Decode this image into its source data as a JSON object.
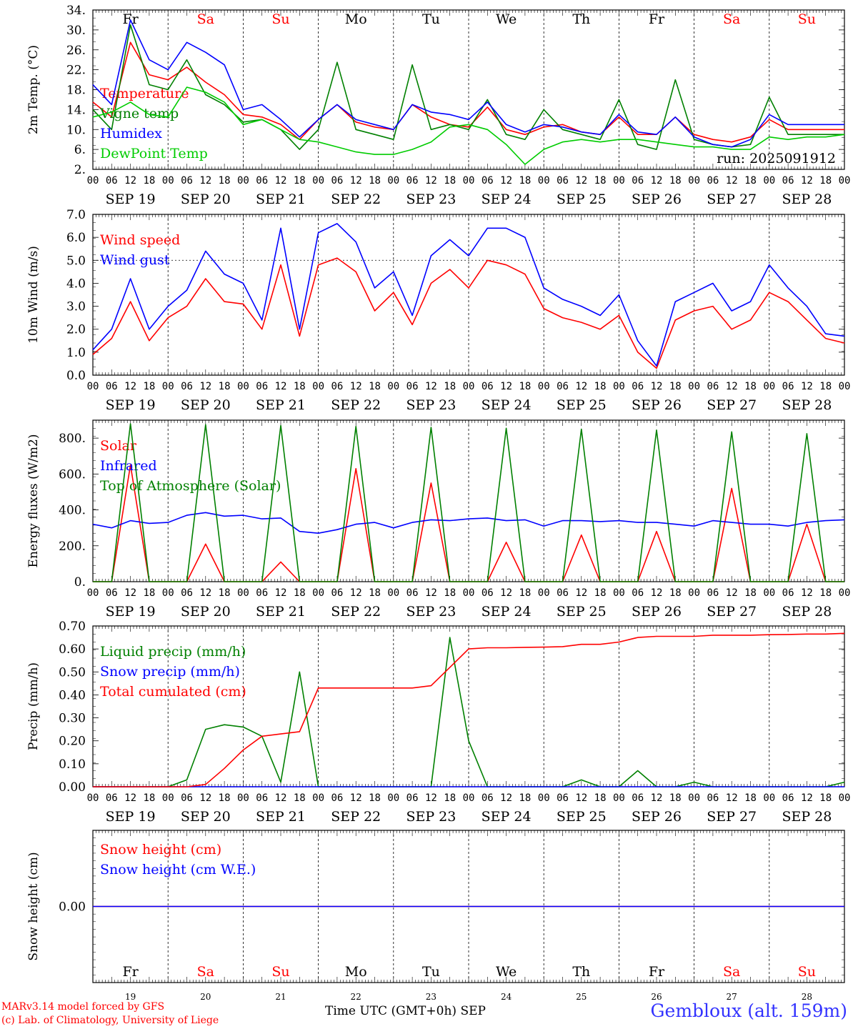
{
  "meta": {
    "station": "Gembloux (alt. 159m)",
    "model_line": "MARv3.14 model forced by GFS",
    "credit_line": "(c) Lab. of Climatology, University of Liege",
    "time_axis_label": "Time UTC (GMT+0h)",
    "month": "SEP",
    "run_label": "run: 2025091912"
  },
  "days": [
    "19",
    "20",
    "21",
    "22",
    "23",
    "24",
    "25",
    "26",
    "27",
    "28"
  ],
  "day_labels": [
    "SEP 19",
    "SEP 20",
    "SEP 21",
    "SEP 22",
    "SEP 23",
    "SEP 24",
    "SEP 25",
    "SEP 26",
    "SEP 27",
    "SEP 28"
  ],
  "weekdays": [
    "Fr",
    "Sa",
    "Su",
    "Mo",
    "Tu",
    "We",
    "Th",
    "Fr",
    "Sa",
    "Su"
  ],
  "weekday_colors": [
    "#000000",
    "#ff0000",
    "#ff0000",
    "#000000",
    "#000000",
    "#000000",
    "#000000",
    "#000000",
    "#ff0000",
    "#ff0000"
  ],
  "hour_ticks": [
    "00",
    "06",
    "12",
    "18"
  ],
  "colors": {
    "red": "#ff0000",
    "darkgreen": "#008000",
    "blue": "#0000ff",
    "lime": "#00cc00"
  },
  "chart_data": [
    {
      "id": "temperature",
      "type": "line",
      "ylabel": "2m Temp. (°C)",
      "ylim": [
        2,
        34
      ],
      "yticks": [
        "34.",
        "30.",
        "26.",
        "22.",
        "18.",
        "14.",
        "10.",
        "6.",
        "2."
      ],
      "ytick_values": [
        34,
        30,
        26,
        22,
        18,
        14,
        10,
        6,
        2
      ],
      "x_hours": [
        0,
        6,
        12,
        18,
        24,
        30,
        36,
        42,
        48,
        54,
        60,
        66,
        72,
        78,
        84,
        90,
        96,
        102,
        108,
        114,
        120,
        126,
        132,
        138,
        144,
        150,
        156,
        162,
        168,
        174,
        180,
        186,
        192,
        198,
        204,
        210,
        216,
        222,
        228,
        234,
        240
      ],
      "series": [
        {
          "name": "Temperature",
          "color": "#ff0000",
          "values": [
            15.5,
            12.5,
            27.5,
            21,
            20,
            22.5,
            19.5,
            17,
            13,
            12.5,
            11,
            8,
            12,
            15,
            11.5,
            10.5,
            10,
            15,
            12.5,
            11,
            10.5,
            14.5,
            10,
            9,
            10.5,
            11,
            9.5,
            9,
            12.5,
            9,
            9,
            12.5,
            9,
            8,
            7.5,
            8.5,
            12,
            10,
            10,
            10,
            10
          ]
        },
        {
          "name": "Vigne temp",
          "color": "#008000",
          "values": [
            14,
            10,
            31,
            19,
            18,
            24,
            17,
            15,
            11.5,
            12,
            10,
            6,
            10,
            23.5,
            10,
            9,
            8,
            23,
            10,
            11,
            10,
            16,
            9,
            8,
            14,
            10,
            9,
            8,
            16,
            7,
            6,
            20,
            8,
            7,
            6.5,
            7,
            16.5,
            9,
            9,
            9,
            9
          ]
        },
        {
          "name": "Humidex",
          "color": "#0000ff",
          "values": [
            19,
            15,
            32,
            24,
            22,
            27.5,
            25.5,
            23,
            14,
            15,
            12,
            8.5,
            12,
            15,
            12,
            11,
            10,
            15,
            13.5,
            13,
            12,
            15.5,
            11,
            9.5,
            11,
            10.5,
            9.5,
            9,
            13,
            9.5,
            9,
            12.5,
            8.5,
            7,
            6.5,
            8,
            13,
            11,
            11,
            11,
            11
          ]
        },
        {
          "name": "DewPoint Temp",
          "color": "#00cc00",
          "values": [
            12.5,
            13.5,
            15.5,
            13,
            12.5,
            18.5,
            17.5,
            15.5,
            11,
            12,
            10,
            8,
            7.5,
            6.5,
            5.5,
            5,
            5,
            6,
            7.5,
            10.5,
            11,
            10,
            7,
            3,
            6,
            7.5,
            8,
            7.5,
            8,
            8,
            7.5,
            7,
            6.5,
            6.5,
            6,
            6,
            8.5,
            8,
            8.5,
            8.5,
            9
          ]
        }
      ]
    },
    {
      "id": "wind",
      "type": "line",
      "ylabel": "10m Wind (m/s)",
      "ylim": [
        0,
        7
      ],
      "yticks": [
        "7.0",
        "6.0",
        "5.0",
        "4.0",
        "3.0",
        "2.0",
        "1.0",
        "0.0"
      ],
      "ytick_values": [
        7,
        6,
        5,
        4,
        3,
        2,
        1,
        0
      ],
      "reference_line": 5.0,
      "x_hours": [
        0,
        6,
        12,
        18,
        24,
        30,
        36,
        42,
        48,
        54,
        60,
        66,
        72,
        78,
        84,
        90,
        96,
        102,
        108,
        114,
        120,
        126,
        132,
        138,
        144,
        150,
        156,
        162,
        168,
        174,
        180,
        186,
        192,
        198,
        204,
        210,
        216,
        222,
        228,
        234,
        240
      ],
      "series": [
        {
          "name": "Wind speed",
          "color": "#ff0000",
          "values": [
            0.9,
            1.6,
            3.2,
            1.5,
            2.5,
            3.0,
            4.2,
            3.2,
            3.1,
            2.0,
            4.8,
            1.7,
            4.8,
            5.1,
            4.5,
            2.8,
            3.6,
            2.2,
            4.0,
            4.6,
            3.8,
            5.0,
            4.8,
            4.4,
            2.9,
            2.5,
            2.3,
            2.0,
            2.6,
            1.0,
            0.3,
            2.4,
            2.8,
            3.0,
            2.0,
            2.4,
            3.6,
            3.2,
            2.4,
            1.6,
            1.4
          ]
        },
        {
          "name": "Wind gust",
          "color": "#0000ff",
          "values": [
            1.1,
            2.0,
            4.2,
            2.0,
            3.0,
            3.7,
            5.4,
            4.4,
            4.0,
            2.4,
            6.4,
            2.0,
            6.2,
            6.6,
            5.8,
            3.8,
            4.5,
            2.6,
            5.2,
            5.9,
            5.2,
            6.4,
            6.4,
            6.0,
            3.8,
            3.3,
            3.0,
            2.6,
            3.5,
            1.5,
            0.4,
            3.2,
            3.6,
            4.0,
            2.8,
            3.2,
            4.8,
            3.8,
            3.0,
            1.8,
            1.7
          ]
        }
      ]
    },
    {
      "id": "fluxes",
      "type": "line",
      "ylabel": "Energy fluxes (W/m2)",
      "ylim": [
        0,
        900
      ],
      "yticks": [
        "800.",
        "600.",
        "400.",
        "200.",
        "0."
      ],
      "ytick_values": [
        800,
        600,
        400,
        200,
        0
      ],
      "x_hours": [
        0,
        6,
        12,
        18,
        24,
        30,
        36,
        42,
        48,
        54,
        60,
        66,
        72,
        78,
        84,
        90,
        96,
        102,
        108,
        114,
        120,
        126,
        132,
        138,
        144,
        150,
        156,
        162,
        168,
        174,
        180,
        186,
        192,
        198,
        204,
        210,
        216,
        222,
        228,
        234,
        240
      ],
      "series": [
        {
          "name": "Solar",
          "color": "#ff0000",
          "values": [
            0,
            0,
            650,
            0,
            0,
            0,
            210,
            0,
            0,
            0,
            110,
            0,
            0,
            0,
            630,
            0,
            0,
            0,
            550,
            0,
            0,
            0,
            220,
            0,
            0,
            0,
            260,
            0,
            0,
            0,
            280,
            0,
            0,
            0,
            520,
            0,
            0,
            0,
            320,
            0,
            0
          ]
        },
        {
          "name": "Infrared",
          "color": "#0000ff",
          "values": [
            320,
            300,
            340,
            325,
            330,
            370,
            385,
            365,
            370,
            350,
            355,
            280,
            270,
            290,
            320,
            330,
            300,
            330,
            345,
            340,
            350,
            355,
            340,
            345,
            310,
            340,
            340,
            335,
            340,
            330,
            330,
            320,
            310,
            340,
            330,
            320,
            320,
            310,
            330,
            340,
            345
          ]
        },
        {
          "name": "Top of Atmosphere (Solar)",
          "color": "#008000",
          "values": [
            0,
            0,
            880,
            0,
            0,
            0,
            875,
            0,
            0,
            0,
            870,
            0,
            0,
            0,
            865,
            0,
            0,
            0,
            860,
            0,
            0,
            0,
            855,
            0,
            0,
            0,
            850,
            0,
            0,
            0,
            845,
            0,
            0,
            0,
            835,
            0,
            0,
            0,
            825,
            0,
            0
          ]
        }
      ]
    },
    {
      "id": "precip",
      "type": "line",
      "ylabel": "Precip (mm/h)",
      "ylim": [
        0,
        0.7
      ],
      "yticks": [
        "0.70",
        "0.60",
        "0.50",
        "0.40",
        "0.30",
        "0.20",
        "0.10",
        "0.00"
      ],
      "ytick_values": [
        0.7,
        0.6,
        0.5,
        0.4,
        0.3,
        0.2,
        0.1,
        0.0
      ],
      "x_hours": [
        0,
        6,
        12,
        18,
        24,
        30,
        36,
        42,
        48,
        54,
        60,
        66,
        72,
        78,
        84,
        90,
        96,
        102,
        108,
        114,
        120,
        126,
        132,
        138,
        144,
        150,
        156,
        162,
        168,
        174,
        180,
        186,
        192,
        198,
        204,
        210,
        216,
        222,
        228,
        234,
        240
      ],
      "series": [
        {
          "name": "Liquid precip (mm/h)",
          "color": "#008000",
          "values": [
            0,
            0,
            0,
            0,
            0,
            0.03,
            0.25,
            0.27,
            0.26,
            0.22,
            0.02,
            0.5,
            0,
            0,
            0,
            0,
            0,
            0,
            0,
            0.65,
            0.2,
            0,
            0,
            0,
            0,
            0,
            0.03,
            0,
            0,
            0.07,
            0,
            0,
            0.02,
            0,
            0,
            0,
            0,
            0,
            0,
            0,
            0.02
          ]
        },
        {
          "name": "Snow precip (mm/h)",
          "color": "#0000ff",
          "values": [
            0,
            0,
            0,
            0,
            0,
            0,
            0,
            0,
            0,
            0,
            0,
            0,
            0,
            0,
            0,
            0,
            0,
            0,
            0,
            0,
            0,
            0,
            0,
            0,
            0,
            0,
            0,
            0,
            0,
            0,
            0,
            0,
            0,
            0,
            0,
            0,
            0,
            0,
            0,
            0,
            0
          ]
        },
        {
          "name": "Total cumulated (cm)",
          "color": "#ff0000",
          "values": [
            0,
            0,
            0,
            0,
            0,
            0,
            0.01,
            0.08,
            0.16,
            0.22,
            0.23,
            0.24,
            0.43,
            0.43,
            0.43,
            0.43,
            0.43,
            0.43,
            0.44,
            0.52,
            0.6,
            0.605,
            0.605,
            0.607,
            0.608,
            0.61,
            0.62,
            0.62,
            0.63,
            0.65,
            0.655,
            0.655,
            0.655,
            0.66,
            0.66,
            0.66,
            0.662,
            0.663,
            0.665,
            0.665,
            0.668
          ]
        }
      ]
    },
    {
      "id": "snow",
      "type": "line",
      "ylabel": "Snow height (cm)",
      "ylim": [
        -1,
        1
      ],
      "yticks": [
        "0.00"
      ],
      "ytick_values": [
        0
      ],
      "x_hours": [
        0,
        240
      ],
      "series": [
        {
          "name": "Snow height (cm)",
          "color": "#ff0000",
          "values": [
            0,
            0
          ]
        },
        {
          "name": "Snow height (cm W.E.)",
          "color": "#0000ff",
          "values": [
            0,
            0
          ]
        }
      ]
    }
  ]
}
